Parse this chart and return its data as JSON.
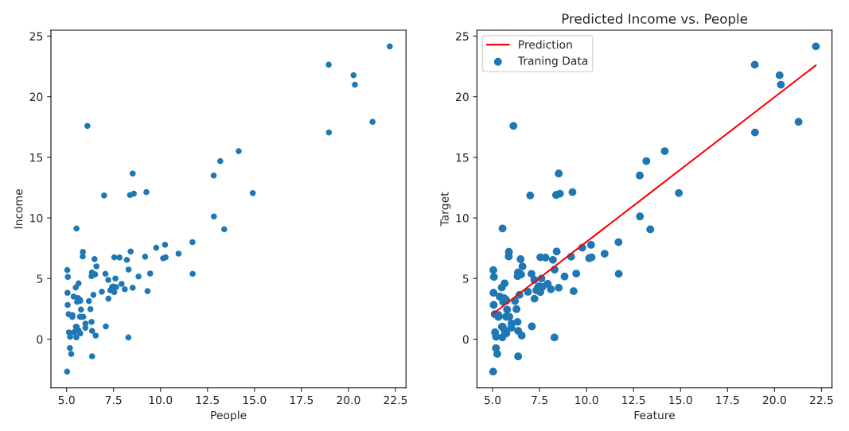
{
  "chart_data": [
    {
      "type": "scatter",
      "xlabel": "People",
      "ylabel": "Income",
      "color": "#1f77b4",
      "x": [
        6.11,
        5.53,
        8.52,
        7.0,
        5.86,
        8.38,
        7.48,
        8.58,
        6.49,
        5.05,
        5.71,
        14.16,
        5.73,
        8.41,
        5.64,
        5.38,
        5.13,
        6.43,
        7.07,
        6.19,
        20.27,
        5.49,
        6.33,
        5.56,
        18.95,
        12.83,
        10.96,
        13.18,
        22.2,
        5.25,
        6.59,
        9.25,
        5.89,
        8.21,
        7.93,
        8.1,
        5.61,
        12.84,
        6.35,
        5.41,
        6.88,
        11.71,
        5.77,
        7.82,
        7.09,
        5.07,
        5.8,
        11.7,
        5.54,
        7.54,
        5.31,
        7.42,
        7.6,
        6.33,
        6.36,
        6.27,
        5.64,
        9.31,
        9.45,
        8.83,
        5.18,
        21.28,
        14.91,
        18.96,
        7.22,
        8.3,
        10.24,
        5.5,
        20.34,
        10.14,
        7.33,
        6.01,
        7.23,
        5.03,
        6.55,
        7.54,
        5.04,
        10.27,
        5.11,
        5.73,
        5.19,
        6.36,
        9.77,
        6.52,
        8.52,
        9.18,
        6.0,
        5.52,
        5.06,
        5.71,
        7.64,
        5.87,
        5.31,
        8.29,
        13.39,
        5.44
      ],
      "values": [
        17.59,
        9.13,
        13.66,
        11.85,
        6.82,
        11.89,
        4.35,
        12.0,
        6.6,
        3.82,
        3.25,
        15.51,
        3.16,
        7.23,
        0.72,
        3.51,
        0.56,
        3.65,
        5.39,
        3.14,
        21.77,
        4.26,
        5.19,
        3.08,
        22.64,
        13.5,
        7.05,
        14.69,
        24.15,
        -1.22,
        6.0,
        12.13,
        1.85,
        6.54,
        4.56,
        4.12,
        3.39,
        10.12,
        5.5,
        0.56,
        3.91,
        5.39,
        2.44,
        6.73,
        1.05,
        5.13,
        1.84,
        8.0,
        1.02,
        6.75,
        1.84,
        4.29,
        5.0,
        1.42,
        -1.42,
        2.48,
        4.6,
        3.96,
        5.41,
        5.17,
        -0.74,
        17.93,
        12.05,
        17.05,
        4.89,
        5.74,
        7.78,
        1.02,
        20.99,
        6.68,
        4.03,
        1.28,
        3.34,
        -2.68,
        0.3,
        3.88,
        5.7,
        6.75,
        2.06,
        0.48,
        0.2,
        0.68,
        7.54,
        5.34,
        4.24,
        6.8,
        0.93,
        0.15,
        2.82,
        1.85,
        4.3,
        7.2,
        1.99,
        0.14,
        9.06,
        0.62
      ],
      "xlim": [
        4.17,
        23.06
      ],
      "ylim": [
        -4.02,
        25.49
      ],
      "xticks": [
        {
          "value": 5,
          "label": "5.0"
        },
        {
          "value": 7.5,
          "label": "7.5"
        },
        {
          "value": 10,
          "label": "10.0"
        },
        {
          "value": 12.5,
          "label": "12.5"
        },
        {
          "value": 15,
          "label": "15.0"
        },
        {
          "value": 17.5,
          "label": "17.5"
        },
        {
          "value": 20,
          "label": "20.0"
        },
        {
          "value": 22.5,
          "label": "22.5"
        }
      ],
      "yticks": [
        0,
        5,
        10,
        15,
        20,
        25
      ]
    },
    {
      "type": "scatter",
      "title": "Predicted Income vs. People",
      "xlabel": "Feature",
      "ylabel": "Target",
      "legend": "top left",
      "series": [
        {
          "name": "Prediction",
          "type": "line",
          "color": "#ff0000",
          "x": [
            5.03,
            22.2
          ],
          "values": [
            2.1,
            22.59
          ]
        },
        {
          "name": "Traning Data",
          "type": "scatter",
          "color": "#1f77b4",
          "x": [
            6.11,
            5.53,
            8.52,
            7.0,
            5.86,
            8.38,
            7.48,
            8.58,
            6.49,
            5.05,
            5.71,
            14.16,
            5.73,
            8.41,
            5.64,
            5.38,
            5.13,
            6.43,
            7.07,
            6.19,
            20.27,
            5.49,
            6.33,
            5.56,
            18.95,
            12.83,
            10.96,
            13.18,
            22.2,
            5.25,
            6.59,
            9.25,
            5.89,
            8.21,
            7.93,
            8.1,
            5.61,
            12.84,
            6.35,
            6.88,
            11.71,
            5.77,
            7.82,
            7.09,
            5.07,
            5.8,
            11.7,
            5.54,
            7.54,
            5.31,
            7.42,
            7.6,
            6.33,
            6.36,
            6.27,
            5.64,
            9.31,
            9.45,
            8.83,
            5.18,
            21.28,
            14.91,
            18.96,
            7.22,
            8.3,
            10.24,
            5.5,
            20.34,
            10.14,
            7.33,
            6.01,
            7.23,
            5.03,
            6.55,
            7.54,
            5.04,
            10.27,
            5.11,
            5.73,
            5.19,
            6.36,
            9.77,
            6.52,
            8.52,
            9.18,
            6.0,
            5.52,
            5.06,
            5.71,
            7.64,
            5.87,
            5.31,
            8.29,
            13.39
          ],
          "values": [
            17.59,
            9.13,
            13.66,
            11.85,
            6.82,
            11.89,
            4.35,
            12.0,
            6.6,
            3.82,
            3.25,
            15.51,
            3.16,
            7.23,
            0.72,
            3.51,
            0.56,
            3.65,
            5.39,
            3.14,
            21.77,
            4.26,
            5.19,
            3.08,
            22.64,
            13.5,
            7.05,
            14.69,
            24.15,
            -1.22,
            6.0,
            12.13,
            1.85,
            6.54,
            4.56,
            4.12,
            3.39,
            10.12,
            5.5,
            3.91,
            5.39,
            2.44,
            6.73,
            1.05,
            5.13,
            1.84,
            8.0,
            1.02,
            6.75,
            1.84,
            4.29,
            5.0,
            1.42,
            -1.42,
            2.48,
            4.6,
            3.96,
            5.41,
            5.17,
            -0.74,
            17.93,
            12.05,
            17.05,
            4.89,
            5.74,
            7.78,
            1.02,
            20.99,
            6.68,
            4.03,
            1.28,
            3.34,
            -2.68,
            0.3,
            3.88,
            5.7,
            6.75,
            2.06,
            0.48,
            0.2,
            0.68,
            7.54,
            5.34,
            4.24,
            6.8,
            0.93,
            0.15,
            2.82,
            1.85,
            4.3,
            7.2,
            1.99,
            0.14,
            9.06
          ]
        }
      ],
      "xlim": [
        4.17,
        23.06
      ],
      "ylim": [
        -4.02,
        25.49
      ],
      "xticks": [
        {
          "value": 5,
          "label": "5.0"
        },
        {
          "value": 7.5,
          "label": "7.5"
        },
        {
          "value": 10,
          "label": "10.0"
        },
        {
          "value": 12.5,
          "label": "12.5"
        },
        {
          "value": 15,
          "label": "15.0"
        },
        {
          "value": 17.5,
          "label": "17.5"
        },
        {
          "value": 20,
          "label": "20.0"
        },
        {
          "value": 22.5,
          "label": "22.5"
        }
      ],
      "yticks": [
        0,
        5,
        10,
        15,
        20,
        25
      ]
    }
  ]
}
